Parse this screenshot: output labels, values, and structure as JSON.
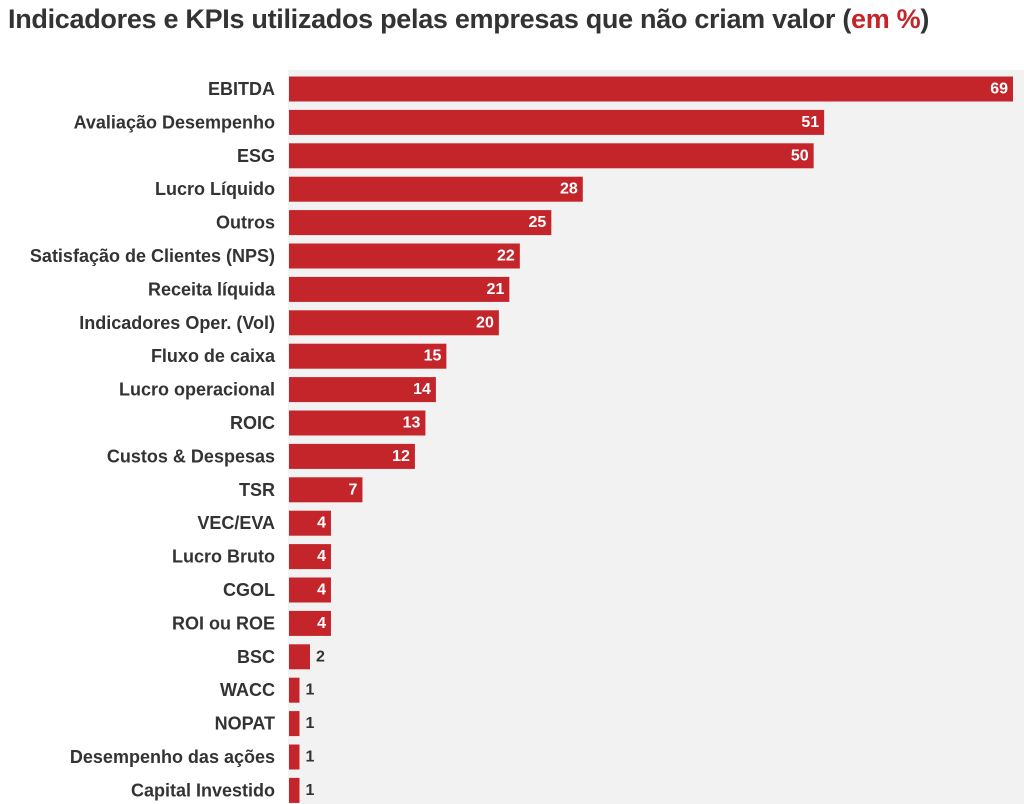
{
  "title": {
    "main": "Indicadores e KPIs utilizados pelas empresas que não criam valor (",
    "highlight": "em %",
    "close": ")"
  },
  "colors": {
    "bar": "#c4252b",
    "label_inside": "#ffffff",
    "label_outside": "#333333",
    "plot_background": "#f2f2f2"
  },
  "chart_data": {
    "type": "bar",
    "orientation": "horizontal",
    "title": "Indicadores e KPIs utilizados pelas empresas que não criam valor (em %)",
    "categories": [
      "EBITDA",
      "Avaliação Desempenho",
      "ESG",
      "Lucro Líquido",
      "Outros",
      "Satisfação de Clientes (NPS)",
      "Receita líquida",
      "Indicadores Oper. (Vol)",
      "Fluxo de caixa",
      "Lucro operacional",
      "ROIC",
      "Custos & Despesas",
      "TSR",
      "VEC/EVA",
      "Lucro Bruto",
      "CGOL",
      "ROI ou ROE",
      "BSC",
      "WACC",
      "NOPAT",
      "Desempenho das ações",
      "Capital Investido"
    ],
    "values": [
      69,
      51,
      50,
      28,
      25,
      22,
      21,
      20,
      15,
      14,
      13,
      12,
      7,
      4,
      4,
      4,
      4,
      2,
      1,
      1,
      1,
      1
    ],
    "xlim": [
      0,
      69
    ],
    "data_labels": true,
    "grid": false,
    "legend": "none"
  }
}
